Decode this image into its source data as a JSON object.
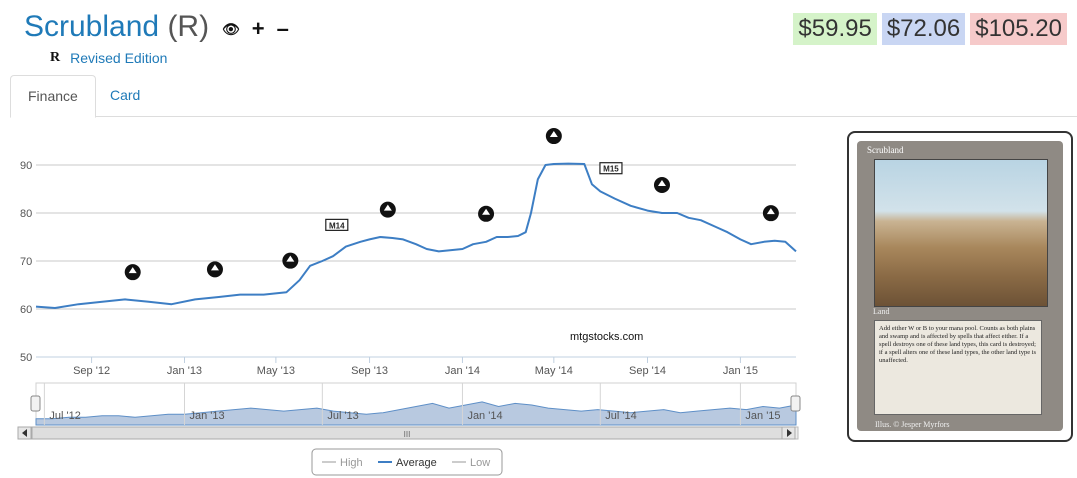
{
  "header": {
    "card_name": "Scrubland",
    "rarity": "(R)",
    "icons": [
      "eye-slash-icon",
      "plus-icon",
      "minus-icon"
    ],
    "set_symbol": "R",
    "edition": "Revised Edition"
  },
  "prices": {
    "low": "$59.95",
    "average": "$72.06",
    "high": "$105.20"
  },
  "tabs": [
    {
      "label": "Finance",
      "active": true
    },
    {
      "label": "Card",
      "active": false
    }
  ],
  "colors": {
    "accent": "#1f7ab8",
    "line": "#3d7ec4",
    "navigator_fill": "#b8c9e0",
    "price_low_bg": "#d5f3c9",
    "price_avg_bg": "#c9d6f3",
    "price_high_bg": "#f6caca"
  },
  "watermark": "mtgstocks.com",
  "chart_data": {
    "type": "line",
    "title": "",
    "xlabel": "",
    "ylabel": "",
    "ylim": [
      50,
      95
    ],
    "y_ticks": [
      50,
      60,
      70,
      80,
      90
    ],
    "grid": true,
    "legend_position": "bottom-center",
    "x_tick_labels": [
      "Sep '12",
      "Jan '13",
      "May '13",
      "Sep '13",
      "Jan '14",
      "May '14",
      "Sep '14",
      "Jan '15"
    ],
    "x_tick_dates": [
      "2012-09-01",
      "2013-01-01",
      "2013-05-01",
      "2013-09-01",
      "2014-01-01",
      "2014-05-01",
      "2014-09-01",
      "2015-01-01"
    ],
    "x_range": [
      "2012-06-20",
      "2015-03-15"
    ],
    "series": [
      {
        "name": "High",
        "visible": false,
        "values": []
      },
      {
        "name": "Average",
        "visible": true,
        "x": [
          "2012-06-20",
          "2012-07-15",
          "2012-08-15",
          "2012-09-15",
          "2012-10-15",
          "2012-11-15",
          "2012-12-15",
          "2013-01-15",
          "2013-02-15",
          "2013-03-15",
          "2013-04-15",
          "2013-05-15",
          "2013-06-01",
          "2013-06-15",
          "2013-07-01",
          "2013-07-15",
          "2013-08-01",
          "2013-08-20",
          "2013-09-01",
          "2013-09-15",
          "2013-10-01",
          "2013-10-15",
          "2013-11-01",
          "2013-11-15",
          "2013-12-01",
          "2014-01-01",
          "2014-01-15",
          "2014-02-01",
          "2014-02-15",
          "2014-03-01",
          "2014-03-15",
          "2014-03-25",
          "2014-04-01",
          "2014-04-10",
          "2014-04-20",
          "2014-05-01",
          "2014-05-20",
          "2014-06-10",
          "2014-06-20",
          "2014-07-01",
          "2014-07-20",
          "2014-08-10",
          "2014-09-01",
          "2014-09-20",
          "2014-10-10",
          "2014-10-25",
          "2014-11-10",
          "2014-12-01",
          "2014-12-15",
          "2015-01-01",
          "2015-01-15",
          "2015-02-01",
          "2015-02-15",
          "2015-03-01",
          "2015-03-15"
        ],
        "values": [
          60.5,
          60.2,
          61,
          61.5,
          62,
          61.5,
          61,
          62,
          62.5,
          63,
          63,
          63.5,
          66,
          69,
          70,
          71,
          73,
          74,
          74.5,
          75,
          74.8,
          74.5,
          73.5,
          72.5,
          72,
          72.5,
          73.5,
          74,
          75,
          75,
          75.2,
          76,
          80,
          87,
          90,
          90.2,
          90.3,
          90.2,
          86,
          84.5,
          83,
          81.5,
          80.5,
          80,
          80,
          79,
          78.5,
          77,
          76,
          74.5,
          73.5,
          74,
          74.2,
          74,
          72
        ]
      },
      {
        "name": "Low",
        "visible": false,
        "values": []
      }
    ],
    "annotations": [
      {
        "label": "set-icon-1",
        "date": "2012-10-25"
      },
      {
        "label": "set-icon-2",
        "date": "2013-02-10"
      },
      {
        "label": "set-icon-3",
        "date": "2013-05-20"
      },
      {
        "label": "M14",
        "date": "2013-07-20"
      },
      {
        "label": "set-icon-5",
        "date": "2013-09-25"
      },
      {
        "label": "set-icon-6",
        "date": "2014-02-01"
      },
      {
        "label": "set-icon-7",
        "date": "2014-05-01"
      },
      {
        "label": "M15",
        "date": "2014-07-15"
      },
      {
        "label": "set-icon-9",
        "date": "2014-09-20"
      },
      {
        "label": "set-icon-10",
        "date": "2015-02-10"
      }
    ],
    "navigator_x_labels": [
      "Jul '12",
      "Jan '13",
      "Jul '13",
      "Jan '14",
      "Jul '14",
      "Jan '15"
    ],
    "navigator_x_dates": [
      "2012-07-01",
      "2013-01-01",
      "2013-07-01",
      "2014-01-01",
      "2014-07-01",
      "2015-01-01"
    ],
    "navigator_values": [
      4,
      4,
      5,
      5,
      6,
      6,
      5,
      6,
      7,
      7,
      8,
      9,
      10,
      11,
      10,
      9,
      10,
      11,
      9,
      8,
      7,
      8,
      10,
      12,
      14,
      11,
      13,
      15,
      12,
      14,
      13,
      11,
      10,
      9,
      10,
      9,
      8,
      9,
      10,
      8,
      9,
      10,
      11,
      10,
      12,
      11,
      13
    ]
  },
  "card": {
    "name": "Scrubland",
    "type": "Land",
    "rules_text": "Add either W or B to your mana pool. Counts as both plains and swamp and is affected by spells that affect either. If a spell destroys one of these land types, this card is destroyed; if a spell alters one of these land types, the other land type is unaffected.",
    "illustrator": "Illus. © Jesper Myrfors"
  }
}
